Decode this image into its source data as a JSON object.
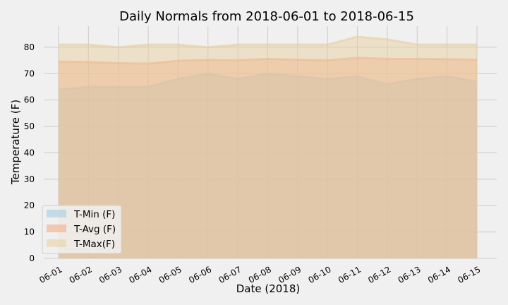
{
  "chart_data": {
    "type": "area",
    "title": "Daily Normals from 2018-06-01 to 2018-06-15",
    "xlabel": "Date (2018)",
    "ylabel": "Temperature (F)",
    "categories": [
      "06-01",
      "06-02",
      "06-03",
      "06-04",
      "06-05",
      "06-06",
      "06-07",
      "06-08",
      "06-09",
      "06-10",
      "06-11",
      "06-12",
      "06-13",
      "06-14",
      "06-15"
    ],
    "ylim": [
      0,
      88
    ],
    "yticks": [
      0,
      10,
      20,
      30,
      40,
      50,
      60,
      70,
      80
    ],
    "grid": true,
    "stacked": false,
    "legend_position": "lower-left",
    "series": [
      {
        "name": "T-Min (F)",
        "color": "#9ecae1",
        "values": [
          64,
          65,
          65,
          65,
          68,
          70,
          68,
          70,
          69,
          68,
          69,
          66,
          68,
          69,
          67
        ]
      },
      {
        "name": "T-Avg (F)",
        "color": "#f4a582",
        "values": [
          74.6,
          74.4,
          74.0,
          73.8,
          74.9,
          75.2,
          75.1,
          75.6,
          75.3,
          75.1,
          76.0,
          75.6,
          75.6,
          75.5,
          75.3
        ]
      },
      {
        "name": "T-Max(F)",
        "color": "#e8cfa0",
        "values": [
          81,
          81,
          80,
          81,
          81,
          80,
          81,
          81,
          81,
          81,
          84,
          83,
          81,
          81,
          81
        ]
      }
    ]
  }
}
